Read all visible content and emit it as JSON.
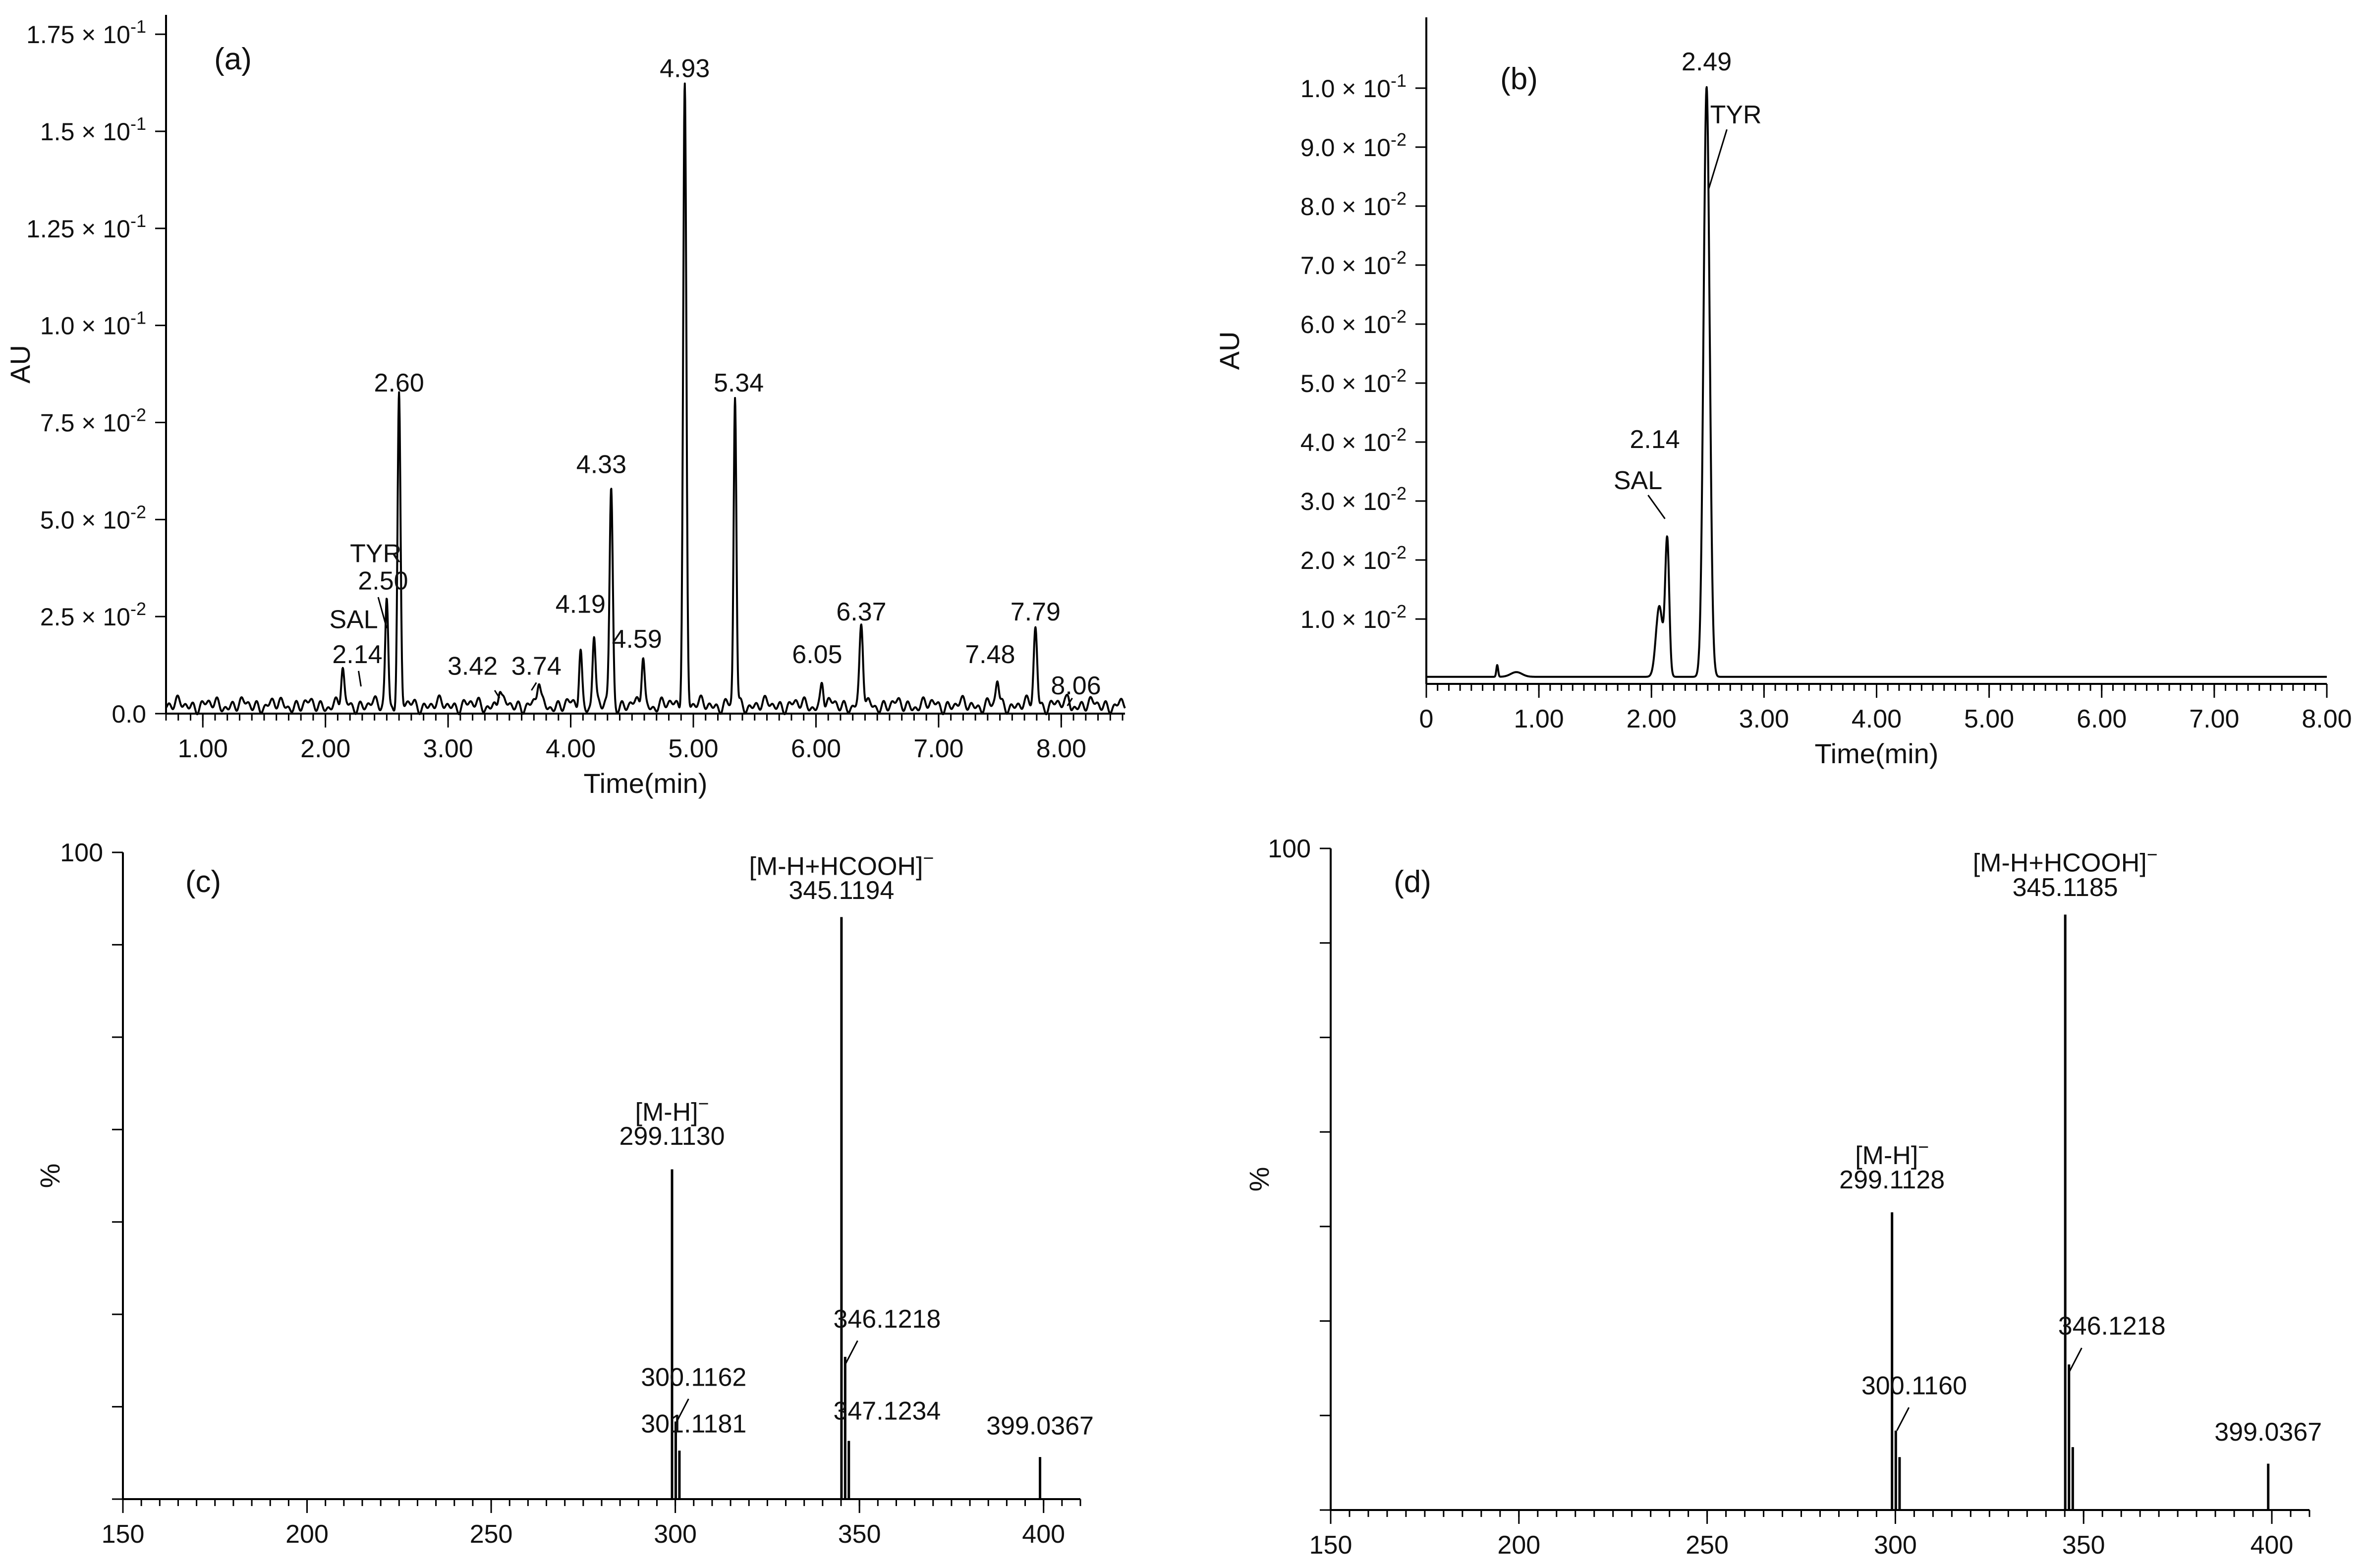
{
  "chart_data": [
    {
      "panel": "(a)",
      "type": "line",
      "xlabel": "Time(min)",
      "ylabel": "AU",
      "xlim": [
        0.7,
        8.52
      ],
      "ylim": [
        0,
        0.18
      ],
      "xticks": [
        "1.00",
        "2.00",
        "3.00",
        "4.00",
        "5.00",
        "6.00",
        "7.00",
        "8.00"
      ],
      "xtick_values": [
        1,
        2,
        3,
        4,
        5,
        6,
        7,
        8
      ],
      "yticks": [
        {
          "value": 0,
          "mant": "0.0",
          "exp": ""
        },
        {
          "value": 0.025,
          "mant": "2.5 × 10",
          "exp": "-2"
        },
        {
          "value": 0.05,
          "mant": "5.0 × 10",
          "exp": "-2"
        },
        {
          "value": 0.075,
          "mant": "7.5 × 10",
          "exp": "-2"
        },
        {
          "value": 0.1,
          "mant": "1.0 × 10",
          "exp": "-1"
        },
        {
          "value": 0.125,
          "mant": "1.25 × 10",
          "exp": "-1"
        },
        {
          "value": 0.15,
          "mant": "1.5 × 10",
          "exp": "-1"
        },
        {
          "value": 0.175,
          "mant": "1.75 × 10",
          "exp": "-1"
        }
      ],
      "peaks": [
        {
          "t": 2.14,
          "h": 0.009,
          "w": 0.012
        },
        {
          "t": 2.5,
          "h": 0.028,
          "w": 0.012
        },
        {
          "t": 2.6,
          "h": 0.079,
          "w": 0.012
        },
        {
          "t": 3.42,
          "h": 0.004,
          "w": 0.012
        },
        {
          "t": 3.74,
          "h": 0.006,
          "w": 0.013
        },
        {
          "t": 4.08,
          "h": 0.014,
          "w": 0.012
        },
        {
          "t": 4.19,
          "h": 0.018,
          "w": 0.012
        },
        {
          "t": 4.33,
          "h": 0.056,
          "w": 0.013
        },
        {
          "t": 4.59,
          "h": 0.013,
          "w": 0.012
        },
        {
          "t": 4.93,
          "h": 0.16,
          "w": 0.013
        },
        {
          "t": 5.34,
          "h": 0.079,
          "w": 0.011
        },
        {
          "t": 6.05,
          "h": 0.006,
          "w": 0.012
        },
        {
          "t": 6.37,
          "h": 0.02,
          "w": 0.014
        },
        {
          "t": 7.48,
          "h": 0.006,
          "w": 0.012
        },
        {
          "t": 7.79,
          "h": 0.02,
          "w": 0.014
        },
        {
          "t": 8.06,
          "h": 0.002,
          "w": 0.012
        }
      ],
      "annotations": [
        {
          "text": "2.60",
          "x": 2.6,
          "y": 0.083
        },
        {
          "text": "TYR",
          "x": 2.41,
          "y": 0.039
        },
        {
          "text": "2.50",
          "x": 2.47,
          "y": 0.032
        },
        {
          "text": "SAL",
          "x": 2.23,
          "y": 0.022
        },
        {
          "text": "2.14",
          "x": 2.26,
          "y": 0.013
        },
        {
          "text": "3.42",
          "x": 3.2,
          "y": 0.01
        },
        {
          "text": "3.74",
          "x": 3.72,
          "y": 0.01
        },
        {
          "text": "4.19",
          "x": 4.08,
          "y": 0.026
        },
        {
          "text": "4.33",
          "x": 4.25,
          "y": 0.062
        },
        {
          "text": "4.59",
          "x": 4.54,
          "y": 0.017
        },
        {
          "text": "4.93",
          "x": 4.93,
          "y": 0.164
        },
        {
          "text": "5.34",
          "x": 5.37,
          "y": 0.083
        },
        {
          "text": "6.05",
          "x": 6.01,
          "y": 0.013
        },
        {
          "text": "6.37",
          "x": 6.37,
          "y": 0.024
        },
        {
          "text": "7.48",
          "x": 7.42,
          "y": 0.013
        },
        {
          "text": "7.79",
          "x": 7.79,
          "y": 0.024
        },
        {
          "text": "8.06",
          "x": 8.12,
          "y": 0.005
        }
      ]
    },
    {
      "panel": "(b)",
      "type": "line",
      "xlabel": "Time(min)",
      "ylabel": "AU",
      "xlim": [
        0,
        8
      ],
      "ylim": [
        -0.001,
        0.112
      ],
      "xticks": [
        "0",
        "1.00",
        "2.00",
        "3.00",
        "4.00",
        "5.00",
        "6.00",
        "7.00",
        "8.00"
      ],
      "xtick_values": [
        0,
        1,
        2,
        3,
        4,
        5,
        6,
        7,
        8
      ],
      "yticks": [
        {
          "value": 0.01,
          "mant": "1.0 × 10",
          "exp": "-2"
        },
        {
          "value": 0.02,
          "mant": "2.0 × 10",
          "exp": "-2"
        },
        {
          "value": 0.03,
          "mant": "3.0 × 10",
          "exp": "-2"
        },
        {
          "value": 0.04,
          "mant": "4.0 × 10",
          "exp": "-2"
        },
        {
          "value": 0.05,
          "mant": "5.0 × 10",
          "exp": "-2"
        },
        {
          "value": 0.06,
          "mant": "6.0 × 10",
          "exp": "-2"
        },
        {
          "value": 0.07,
          "mant": "7.0 × 10",
          "exp": "-2"
        },
        {
          "value": 0.08,
          "mant": "8.0 × 10",
          "exp": "-2"
        },
        {
          "value": 0.09,
          "mant": "9.0 × 10",
          "exp": "-2"
        },
        {
          "value": 0.1,
          "mant": "1.0 × 10",
          "exp": "-1"
        }
      ],
      "peaks": [
        {
          "t": 0.63,
          "h": 0.002,
          "w": 0.008
        },
        {
          "t": 0.8,
          "h": 0.0008,
          "w": 0.05
        },
        {
          "t": 2.07,
          "h": 0.012,
          "w": 0.03
        },
        {
          "t": 2.14,
          "h": 0.023,
          "w": 0.018
        },
        {
          "t": 2.49,
          "h": 0.1,
          "w": 0.027
        }
      ],
      "annotations": [
        {
          "text": "2.49",
          "x": 2.49,
          "y": 0.103
        },
        {
          "text": "TYR",
          "x": 2.75,
          "y": 0.094
        },
        {
          "text": "2.14",
          "x": 2.03,
          "y": 0.039
        },
        {
          "text": "SAL",
          "x": 1.88,
          "y": 0.032
        }
      ]
    },
    {
      "panel": "(c)",
      "type": "bar",
      "xlabel": "",
      "ylabel": "%",
      "xlim": [
        150,
        410
      ],
      "ylim": [
        0,
        100
      ],
      "y_max_label": "100",
      "xticks": [
        "150",
        "200",
        "250",
        "300",
        "350",
        "400"
      ],
      "xtick_values": [
        150,
        200,
        250,
        300,
        350,
        400
      ],
      "sticks": [
        {
          "mz": 299.113,
          "intensity": 51
        },
        {
          "mz": 300.116,
          "intensity": 12
        },
        {
          "mz": 301.118,
          "intensity": 7.5
        },
        {
          "mz": 345.119,
          "intensity": 90
        },
        {
          "mz": 346.122,
          "intensity": 22
        },
        {
          "mz": 347.123,
          "intensity": 9
        },
        {
          "mz": 399.037,
          "intensity": 6.5
        }
      ],
      "labels": [
        {
          "text": "[M-H+HCOOH]",
          "charge": "−",
          "mz": 345.119,
          "pos": 96.5
        },
        {
          "text": "345.1194",
          "mz": 345.119,
          "pos": 92.8
        },
        {
          "text": "[M-H]",
          "charge": "−",
          "mz": 299.113,
          "pos": 58.5
        },
        {
          "text": "299.1130",
          "mz": 299.113,
          "pos": 54.8
        },
        {
          "text": "346.1218",
          "mz": 357.5,
          "pos": 26.5
        },
        {
          "text": "300.1162",
          "mz": 305,
          "pos": 17.5
        },
        {
          "text": "301.1181",
          "mz": 305,
          "pos": 10.3
        },
        {
          "text": "347.1234",
          "mz": 357.5,
          "pos": 12.3
        },
        {
          "text": "399.0367",
          "mz": 399.037,
          "pos": 10
        }
      ]
    },
    {
      "panel": "(d)",
      "type": "bar",
      "xlabel": "",
      "ylabel": "%",
      "xlim": [
        150,
        410
      ],
      "ylim": [
        0,
        100
      ],
      "y_max_label": "100",
      "xticks": [
        "150",
        "200",
        "250",
        "300",
        "350",
        "400"
      ],
      "xtick_values": [
        150,
        200,
        250,
        300,
        350,
        400
      ],
      "sticks": [
        {
          "mz": 299.113,
          "intensity": 45
        },
        {
          "mz": 300.116,
          "intensity": 12
        },
        {
          "mz": 301.118,
          "intensity": 8
        },
        {
          "mz": 345.119,
          "intensity": 90
        },
        {
          "mz": 346.122,
          "intensity": 22
        },
        {
          "mz": 347.123,
          "intensity": 9.5
        },
        {
          "mz": 399.037,
          "intensity": 7
        }
      ],
      "labels": [
        {
          "text": "[M-H+HCOOH]",
          "charge": "−",
          "mz": 345.119,
          "pos": 96.5
        },
        {
          "text": "345.1185",
          "mz": 345.119,
          "pos": 92.8
        },
        {
          "text": "[M-H]",
          "charge": "−",
          "mz": 299.113,
          "pos": 52.3
        },
        {
          "text": "299.1128",
          "mz": 299.113,
          "pos": 48.6
        },
        {
          "text": "346.1218",
          "mz": 357.5,
          "pos": 26.5
        },
        {
          "text": "300.1160",
          "mz": 305,
          "pos": 17.5
        },
        {
          "text": "399.0367",
          "mz": 399.037,
          "pos": 10.5
        }
      ]
    }
  ]
}
